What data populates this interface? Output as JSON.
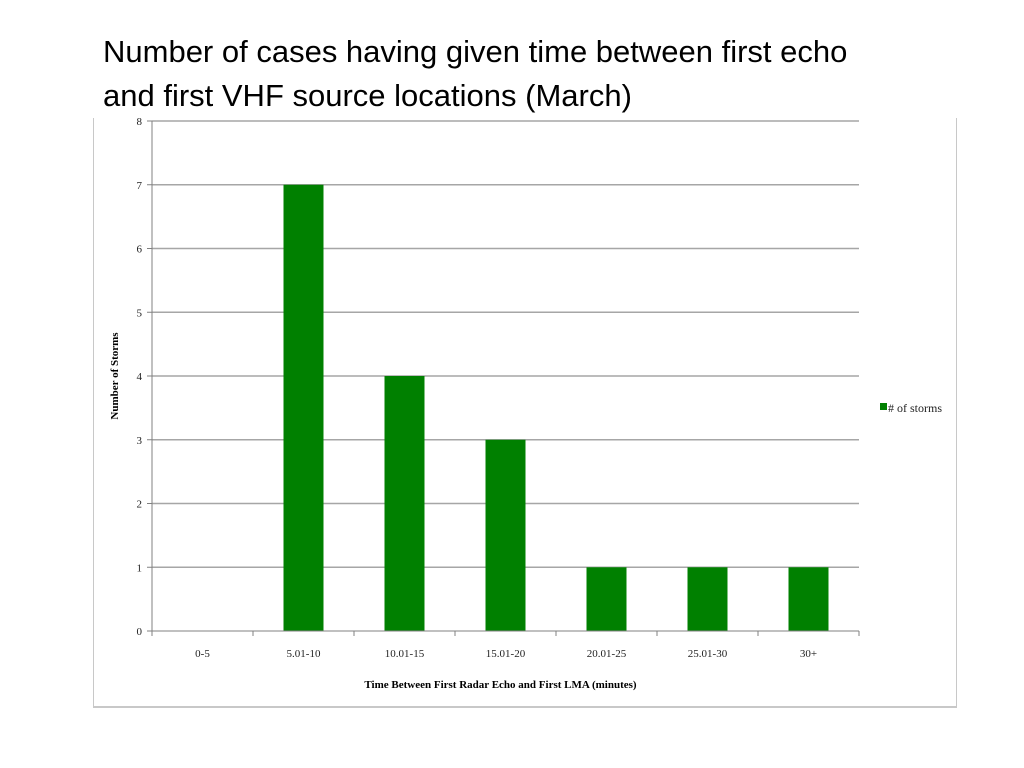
{
  "title": {
    "line1": "Number of cases having given time between first echo",
    "line2": "and first VHF source locations  (March)"
  },
  "chart_data": {
    "type": "bar",
    "categories": [
      "0-5",
      "5.01-10",
      "10.01-15",
      "15.01-20",
      "20.01-25",
      "25.01-30",
      "30+"
    ],
    "series": [
      {
        "name": "# of storms",
        "color": "#008000",
        "values": [
          0,
          7,
          4,
          3,
          1,
          1,
          1
        ]
      }
    ],
    "xlabel": "Time Between First Radar Echo and First LMA (minutes)",
    "ylabel": "Number of Storms",
    "ylim": [
      0,
      8
    ],
    "yticks": [
      0,
      1,
      2,
      3,
      4,
      5,
      6,
      7,
      8
    ],
    "grid": true,
    "legend_position": "right"
  }
}
